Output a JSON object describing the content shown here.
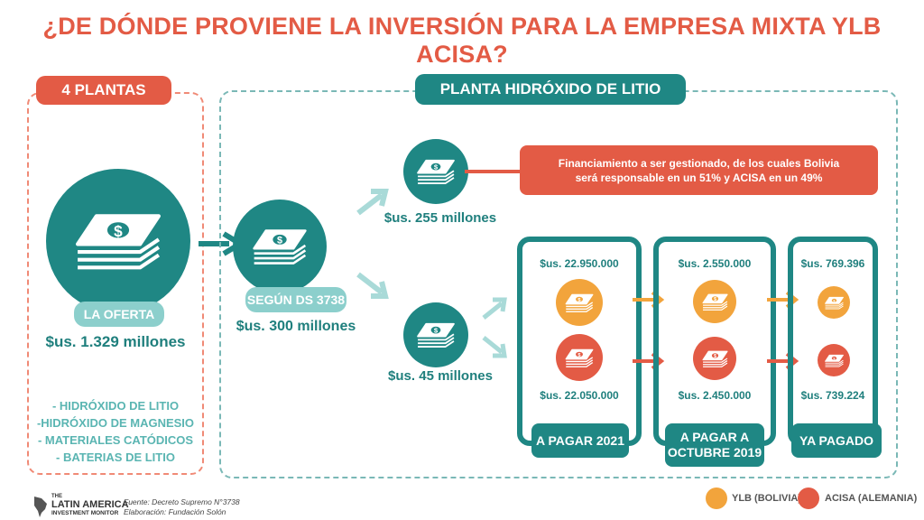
{
  "title": "¿DE DÓNDE PROVIENE LA INVERSIÓN PARA LA EMPRESA MIXTA YLB ACISA?",
  "left_panel": {
    "header": "4 PLANTAS",
    "offer_label": "LA OFERTA",
    "offer_amount": "$us. 1.329 millones",
    "plants": [
      "- HIDRÓXIDO DE LITIO",
      "-HIDRÓXIDO DE MAGNESIO",
      "- MATERIALES CATÓDICOS",
      "- BATERIAS DE LITIO"
    ]
  },
  "right_panel": {
    "header": "PLANTA HIDRÓXIDO DE LITIO",
    "ds_label": "SEGÚN DS 3738",
    "ds_amount": "$us. 300 millones",
    "top_amount": "$us. 255 millones",
    "financing_note": "Financiamiento a ser gestionado,  de los cuales Bolivia será responsable en un 51% y ACISA en un 49%",
    "bottom_amount": "$us. 45 millones",
    "columns": [
      {
        "ylb": "$us. 22.950.000",
        "acisa": "$us. 22.050.000",
        "footer": "A PAGAR 2021"
      },
      {
        "ylb": "$us. 2.550.000",
        "acisa": "$us. 2.450.000",
        "footer": "A PAGAR A OCTUBRE 2019"
      },
      {
        "ylb": "$us. 769.396",
        "acisa": "$us. 739.224",
        "footer": "YA PAGADO"
      }
    ]
  },
  "legend": {
    "ylb": "YLB (BOLIVIA)",
    "acisa": "ACISA (ALEMANIA)",
    "ylb_color": "#f2a43c",
    "acisa_color": "#e35b45"
  },
  "footer": {
    "logo_line1": "THE",
    "logo_line2": "LATIN AMERICA",
    "logo_line3": "INVESTMENT MONITOR",
    "source": "Fuente: Decreto Supremo N°3738",
    "elaboration": "Elaboración: Fundación Solón"
  },
  "icons": [
    "money-stack-icon",
    "arrow-icon"
  ],
  "colors": {
    "teal": "#1f8784",
    "light_teal": "#8ccfcc",
    "red": "#e35b45",
    "orange": "#f2a43c"
  }
}
